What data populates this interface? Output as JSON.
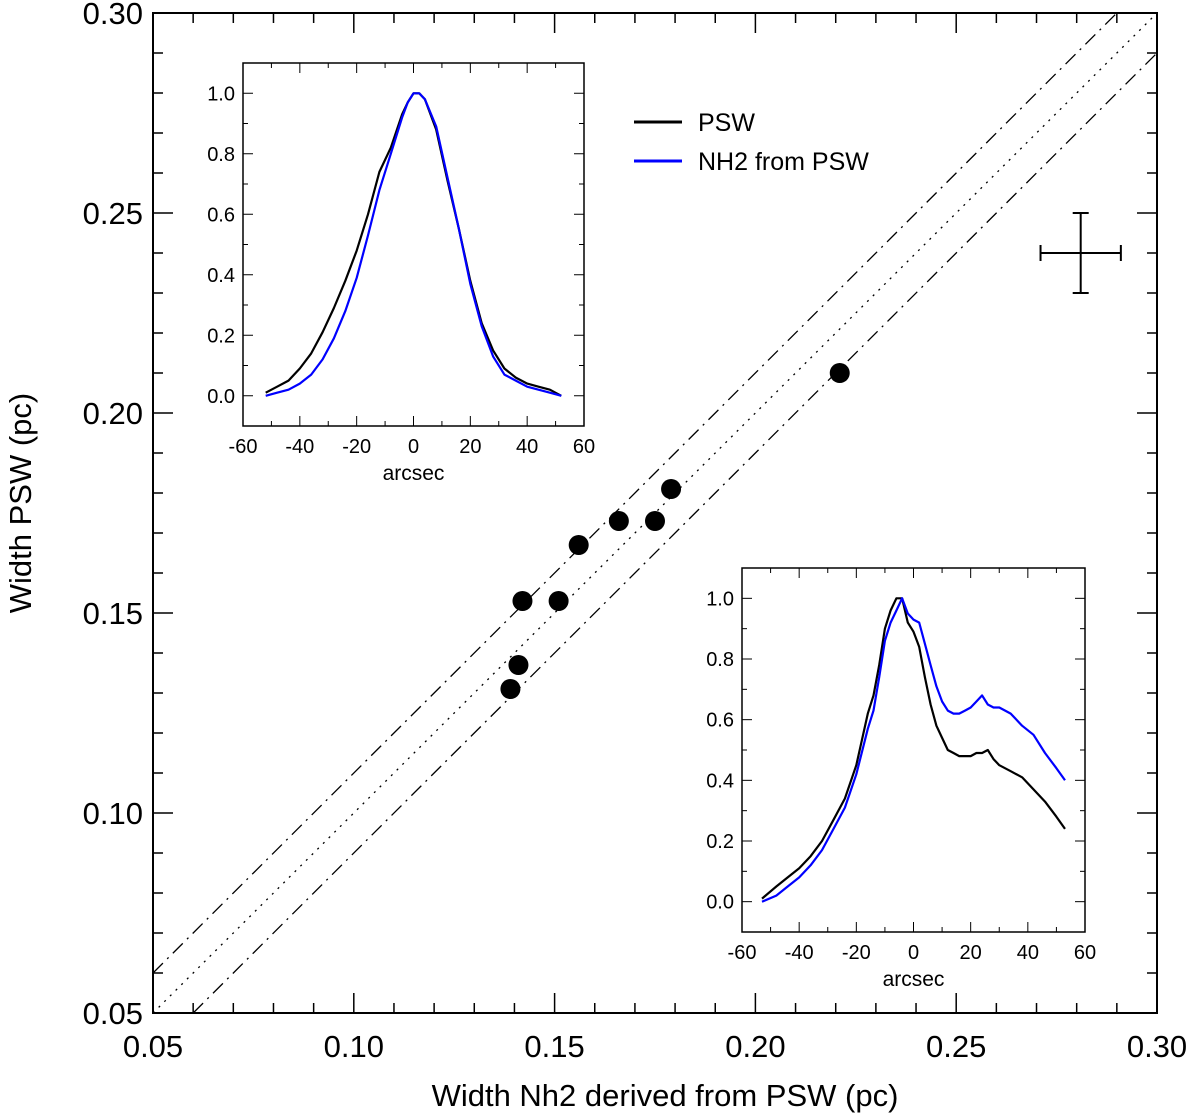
{
  "chart_data": [
    {
      "id": "main",
      "type": "scatter",
      "xlabel": "Width Nh2 derived from PSW (pc)",
      "ylabel": "Width PSW (pc)",
      "xlim": [
        0.05,
        0.3
      ],
      "ylim": [
        0.05,
        0.3
      ],
      "xticks": [
        "0.05",
        "0.10",
        "0.15",
        "0.20",
        "0.25",
        "0.30"
      ],
      "yticks": [
        "0.05",
        "0.10",
        "0.15",
        "0.20",
        "0.25",
        "0.30"
      ],
      "points": [
        {
          "x": 0.139,
          "y": 0.131
        },
        {
          "x": 0.141,
          "y": 0.137
        },
        {
          "x": 0.142,
          "y": 0.153
        },
        {
          "x": 0.151,
          "y": 0.153
        },
        {
          "x": 0.156,
          "y": 0.167
        },
        {
          "x": 0.166,
          "y": 0.173
        },
        {
          "x": 0.175,
          "y": 0.173
        },
        {
          "x": 0.179,
          "y": 0.181
        },
        {
          "x": 0.221,
          "y": 0.21
        }
      ],
      "reference_lines": [
        {
          "name": "1:1",
          "style": "dotted",
          "slope": 1,
          "intercept": 0
        },
        {
          "name": "upper",
          "style": "dash-dot",
          "slope": 1,
          "intercept": 0.01
        },
        {
          "name": "lower",
          "style": "dash-dot",
          "slope": 1,
          "intercept": -0.01
        }
      ],
      "error_bar": {
        "x": 0.281,
        "y": 0.24,
        "xerr": 0.01,
        "yerr": 0.01
      },
      "legend": {
        "placement": "top-center",
        "entries": [
          {
            "label": "PSW",
            "color": "#000000"
          },
          {
            "label": "NH2 from PSW",
            "color": "#0000ff"
          }
        ]
      }
    },
    {
      "id": "inset_top_left",
      "type": "line",
      "xlabel": "arcsec",
      "xlim": [
        -60,
        60
      ],
      "ylim": [
        -0.1,
        1.1
      ],
      "xticks": [
        "-60",
        "-40",
        "-20",
        "0",
        "20",
        "40",
        "60"
      ],
      "yticks": [
        "0.0",
        "0.2",
        "0.4",
        "0.6",
        "0.8",
        "1.0"
      ],
      "x": [
        -52,
        -48,
        -44,
        -40,
        -36,
        -32,
        -28,
        -24,
        -20,
        -16,
        -12,
        -8,
        -4,
        -2,
        0,
        2,
        4,
        8,
        12,
        16,
        20,
        24,
        28,
        32,
        36,
        40,
        44,
        48,
        52
      ],
      "series": [
        {
          "name": "PSW",
          "color": "#000000",
          "values": [
            0.01,
            0.03,
            0.05,
            0.09,
            0.14,
            0.21,
            0.29,
            0.38,
            0.48,
            0.6,
            0.74,
            0.82,
            0.93,
            0.97,
            1.0,
            1.0,
            0.98,
            0.88,
            0.71,
            0.55,
            0.38,
            0.24,
            0.15,
            0.09,
            0.06,
            0.04,
            0.03,
            0.02,
            0.0
          ]
        },
        {
          "name": "NH2 from PSW",
          "color": "#0000ff",
          "values": [
            0.0,
            0.01,
            0.02,
            0.04,
            0.07,
            0.12,
            0.19,
            0.28,
            0.39,
            0.53,
            0.68,
            0.8,
            0.92,
            0.97,
            1.0,
            1.0,
            0.98,
            0.89,
            0.72,
            0.55,
            0.37,
            0.23,
            0.13,
            0.07,
            0.05,
            0.03,
            0.02,
            0.01,
            0.0
          ]
        }
      ]
    },
    {
      "id": "inset_bottom_right",
      "type": "line",
      "xlabel": "arcsec",
      "xlim": [
        -60,
        60
      ],
      "ylim": [
        -0.1,
        1.1
      ],
      "xticks": [
        "-60",
        "-40",
        "-20",
        "0",
        "20",
        "40",
        "60"
      ],
      "yticks": [
        "0.0",
        "0.2",
        "0.4",
        "0.6",
        "0.8",
        "1.0"
      ],
      "series": [
        {
          "name": "PSW",
          "color": "#000000",
          "x": [
            -53,
            -48,
            -44,
            -40,
            -36,
            -32,
            -28,
            -24,
            -20,
            -16,
            -14,
            -12,
            -10,
            -8,
            -6,
            -4,
            -2,
            0,
            2,
            4,
            6,
            8,
            10,
            12,
            14,
            16,
            18,
            20,
            22,
            24,
            26,
            28,
            30,
            34,
            38,
            42,
            46,
            50,
            53
          ],
          "values": [
            0.01,
            0.05,
            0.08,
            0.11,
            0.15,
            0.2,
            0.27,
            0.34,
            0.45,
            0.62,
            0.68,
            0.78,
            0.9,
            0.96,
            1.0,
            1.0,
            0.92,
            0.89,
            0.84,
            0.74,
            0.65,
            0.58,
            0.54,
            0.5,
            0.49,
            0.48,
            0.48,
            0.48,
            0.49,
            0.49,
            0.5,
            0.47,
            0.45,
            0.43,
            0.41,
            0.37,
            0.33,
            0.28,
            0.24
          ]
        },
        {
          "name": "NH2 from PSW",
          "color": "#0000ff",
          "x": [
            -53,
            -48,
            -44,
            -40,
            -36,
            -32,
            -28,
            -24,
            -20,
            -16,
            -14,
            -12,
            -10,
            -8,
            -6,
            -4,
            -2,
            0,
            2,
            4,
            6,
            8,
            10,
            12,
            14,
            16,
            18,
            20,
            22,
            24,
            26,
            28,
            30,
            34,
            38,
            42,
            46,
            50,
            53
          ],
          "values": [
            0.0,
            0.02,
            0.05,
            0.08,
            0.12,
            0.17,
            0.24,
            0.31,
            0.42,
            0.57,
            0.63,
            0.74,
            0.86,
            0.92,
            0.96,
            1.0,
            0.95,
            0.93,
            0.92,
            0.85,
            0.78,
            0.71,
            0.66,
            0.63,
            0.62,
            0.62,
            0.63,
            0.64,
            0.66,
            0.68,
            0.65,
            0.64,
            0.64,
            0.62,
            0.58,
            0.55,
            0.49,
            0.44,
            0.4
          ]
        }
      ]
    }
  ]
}
